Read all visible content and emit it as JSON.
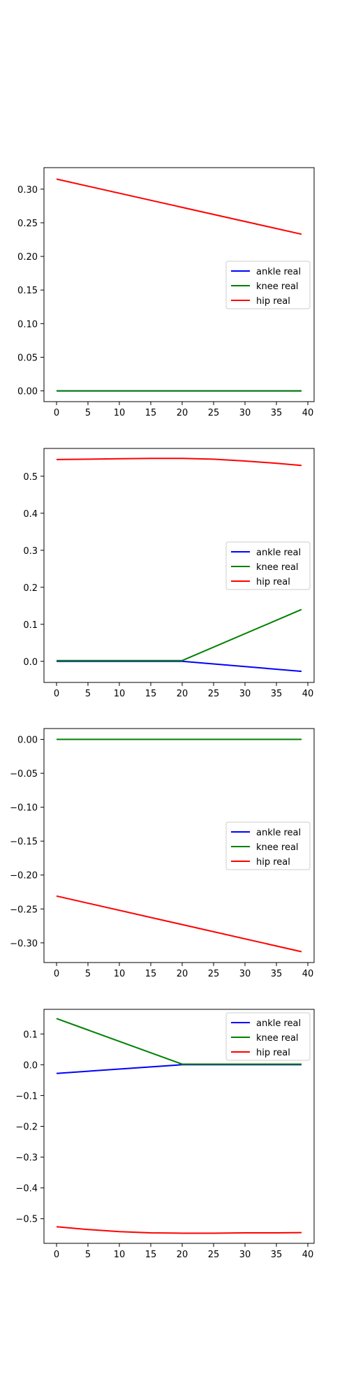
{
  "chart_data": [
    {
      "type": "line",
      "x_ticks": [
        0,
        5,
        10,
        15,
        20,
        25,
        30,
        35,
        40
      ],
      "y_ticks": [
        "0.00",
        "0.05",
        "0.10",
        "0.15",
        "0.20",
        "0.25",
        "0.30"
      ],
      "xlim": [
        -2,
        41
      ],
      "ylim": [
        -0.016,
        0.332
      ],
      "legend": "center-right",
      "series": [
        {
          "name": "ankle real",
          "color": "#0000ff",
          "x": [
            0,
            39
          ],
          "y": [
            0,
            0
          ]
        },
        {
          "name": "knee real",
          "color": "#008000",
          "x": [
            0,
            39
          ],
          "y": [
            0,
            0
          ]
        },
        {
          "name": "hip real",
          "color": "#ff0000",
          "x": [
            0,
            39
          ],
          "y": [
            0.315,
            0.233
          ]
        }
      ]
    },
    {
      "type": "line",
      "x_ticks": [
        0,
        5,
        10,
        15,
        20,
        25,
        30,
        35,
        40
      ],
      "y_ticks": [
        "0.0",
        "0.1",
        "0.2",
        "0.3",
        "0.4",
        "0.5"
      ],
      "xlim": [
        -2,
        41
      ],
      "ylim": [
        -0.057,
        0.575
      ],
      "legend": "center-right",
      "series": [
        {
          "name": "ankle real",
          "color": "#0000ff",
          "x": [
            0,
            20,
            39
          ],
          "y": [
            0,
            0,
            -0.027
          ]
        },
        {
          "name": "knee real",
          "color": "#008000",
          "x": [
            0,
            20,
            39
          ],
          "y": [
            0.002,
            0.002,
            0.14
          ]
        },
        {
          "name": "hip real",
          "color": "#ff0000",
          "x": [
            0,
            5,
            10,
            15,
            20,
            25,
            30,
            35,
            39
          ],
          "y": [
            0.545,
            0.546,
            0.547,
            0.548,
            0.548,
            0.546,
            0.541,
            0.535,
            0.529
          ]
        }
      ]
    },
    {
      "type": "line",
      "x_ticks": [
        0,
        5,
        10,
        15,
        20,
        25,
        30,
        35,
        40
      ],
      "y_ticks": [
        "0.00",
        "−0.05",
        "−0.10",
        "−0.15",
        "−0.20",
        "−0.25",
        "−0.30"
      ],
      "xlim": [
        -2,
        41
      ],
      "ylim": [
        -0.329,
        0.016
      ],
      "legend": "center-right",
      "series": [
        {
          "name": "ankle real",
          "color": "#0000ff",
          "x": [
            0,
            39
          ],
          "y": [
            0,
            0
          ]
        },
        {
          "name": "knee real",
          "color": "#008000",
          "x": [
            0,
            39
          ],
          "y": [
            0,
            0
          ]
        },
        {
          "name": "hip real",
          "color": "#ff0000",
          "x": [
            0,
            39
          ],
          "y": [
            -0.231,
            -0.313
          ]
        }
      ]
    },
    {
      "type": "line",
      "x_ticks": [
        0,
        5,
        10,
        15,
        20,
        25,
        30,
        35,
        40
      ],
      "y_ticks": [
        "0.1",
        "0.0",
        "−0.1",
        "−0.2",
        "−0.3",
        "−0.4",
        "−0.5"
      ],
      "xlim": [
        -2,
        41
      ],
      "ylim": [
        -0.58,
        0.18
      ],
      "legend": "top-right",
      "series": [
        {
          "name": "ankle real",
          "color": "#0000ff",
          "x": [
            0,
            20,
            39
          ],
          "y": [
            -0.028,
            0,
            0
          ]
        },
        {
          "name": "knee real",
          "color": "#008000",
          "x": [
            0,
            20,
            39
          ],
          "y": [
            0.15,
            0.002,
            0.002
          ]
        },
        {
          "name": "hip real",
          "color": "#ff0000",
          "x": [
            0,
            5,
            10,
            15,
            20,
            25,
            30,
            35,
            39
          ],
          "y": [
            -0.526,
            -0.535,
            -0.542,
            -0.546,
            -0.547,
            -0.547,
            -0.546,
            -0.546,
            -0.545
          ]
        }
      ]
    }
  ]
}
